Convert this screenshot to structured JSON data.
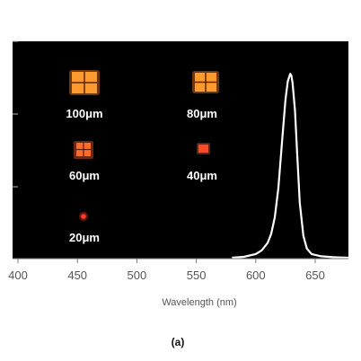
{
  "chart_data": {
    "type": "line",
    "title": "",
    "xlabel": "Wavelength (nm)",
    "ylabel": "",
    "xlim": [
      400,
      680
    ],
    "ylim": [
      0,
      1.05
    ],
    "x_ticks": [
      400,
      450,
      500,
      550,
      600,
      650
    ],
    "grid": false,
    "background": "#000000",
    "series": [
      {
        "color": "#ffffff",
        "x": [
          580,
          590,
          600,
          605,
          610,
          613,
          616,
          619,
          622,
          625,
          627,
          629,
          630,
          631,
          633,
          635,
          637,
          640,
          643,
          647,
          655,
          665,
          680
        ],
        "values": [
          0,
          0.005,
          0.02,
          0.04,
          0.08,
          0.13,
          0.22,
          0.38,
          0.62,
          0.86,
          0.96,
          1.0,
          0.99,
          0.95,
          0.8,
          0.55,
          0.3,
          0.12,
          0.05,
          0.02,
          0.008,
          0.003,
          0
        ]
      }
    ],
    "annotations": [
      {
        "label": "100μm",
        "size": "100"
      },
      {
        "label": "80μm",
        "size": "80"
      },
      {
        "label": "60μm",
        "size": "60"
      },
      {
        "label": "40μm",
        "size": "40"
      },
      {
        "label": "20μm",
        "size": "20"
      }
    ],
    "caption": "(a)"
  },
  "colors": {
    "plot_background": "#000000",
    "spectrum_line": "#ffffff",
    "pixel_glow": "#ff8a1e",
    "pixel_core": "#ffb347"
  }
}
